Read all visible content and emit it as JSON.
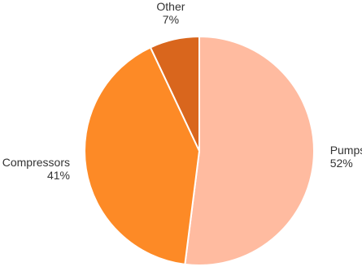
{
  "chart_data": {
    "type": "pie",
    "title": "",
    "slices": [
      {
        "label": "Pumps",
        "value": 52,
        "value_label": "52%",
        "color": "#ffbba0"
      },
      {
        "label": "Compressors",
        "value": 41,
        "value_label": "41%",
        "color": "#fd8a26"
      },
      {
        "label": "Other",
        "value": 7,
        "value_label": "7%",
        "color": "#d9661d"
      }
    ],
    "start_angle_deg": 0,
    "direction": "clockwise",
    "legend": "none"
  }
}
